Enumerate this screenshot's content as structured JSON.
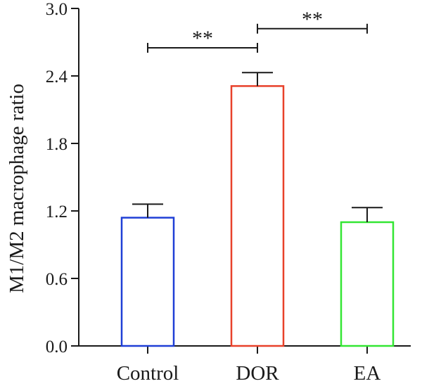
{
  "chart_data": {
    "type": "bar",
    "title": "",
    "xlabel": "",
    "ylabel": "M1/M2 macrophage ratio",
    "ylim": [
      0,
      3.0
    ],
    "yticks": [
      "0.0",
      "0.6",
      "1.2",
      "1.8",
      "2.4",
      "3.0"
    ],
    "categories": [
      "Control",
      "DOR",
      "EA"
    ],
    "values": [
      1.14,
      2.31,
      1.1
    ],
    "errors": [
      0.12,
      0.12,
      0.13
    ],
    "colors": [
      "#1f3fd6",
      "#e8412a",
      "#33e633"
    ],
    "grid": false,
    "legend": "none",
    "significance": [
      {
        "from": 0,
        "to": 1,
        "y": 2.65,
        "label": "**"
      },
      {
        "from": 1,
        "to": 2,
        "y": 2.82,
        "label": "**"
      }
    ]
  }
}
